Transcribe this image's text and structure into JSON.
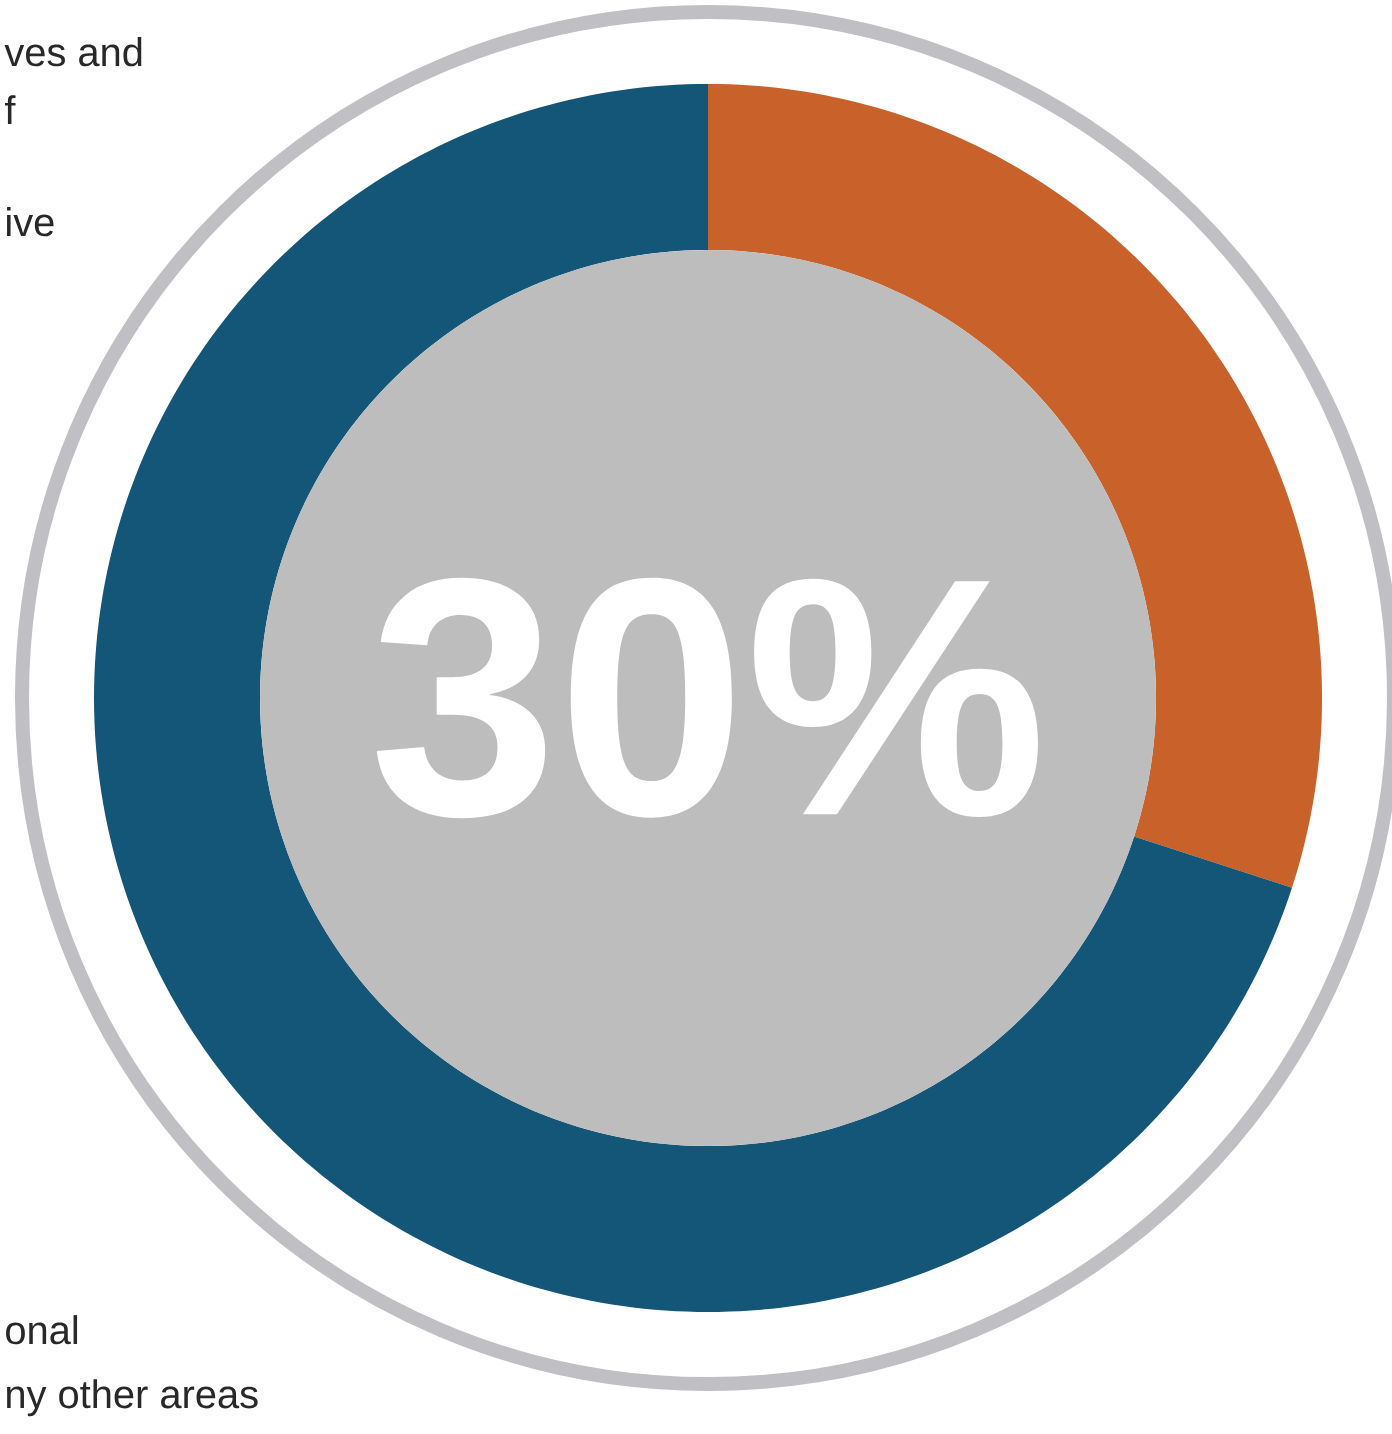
{
  "chart_data": {
    "type": "donut",
    "categories": [
      null,
      null
    ],
    "values": [
      30,
      70
    ],
    "colors": [
      "#c8622a",
      "#135677"
    ],
    "annotations": [
      "30%",
      "ves and",
      "f",
      "ive",
      "onal",
      "ny other areas"
    ]
  }
}
